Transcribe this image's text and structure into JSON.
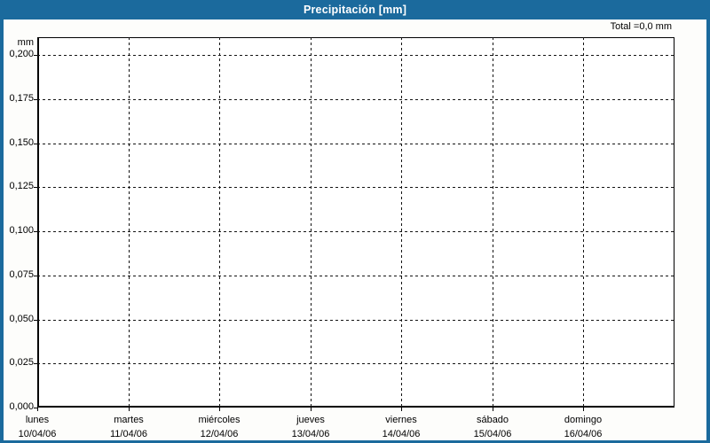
{
  "title_bar": {
    "title": "Precipitación [mm]"
  },
  "chart_data": {
    "type": "bar",
    "title": "Precipitación [mm]",
    "unit_label": "mm",
    "ylabel": "mm",
    "xlabel": "",
    "total_label": "Total =0,0 mm",
    "total_mm": 0.0,
    "categories": [
      "lunes",
      "martes",
      "miércoles",
      "jueves",
      "viernes",
      "sábado",
      "domingo"
    ],
    "dates": [
      "10/04/06",
      "11/04/06",
      "12/04/06",
      "13/04/06",
      "14/04/06",
      "15/04/06",
      "16/04/06"
    ],
    "values": [
      0,
      0,
      0,
      0,
      0,
      0,
      0
    ],
    "y_ticks": [
      {
        "label": "0,200",
        "value": 0.2
      },
      {
        "label": "0,175",
        "value": 0.175
      },
      {
        "label": "0,150",
        "value": 0.15
      },
      {
        "label": "0,125",
        "value": 0.125
      },
      {
        "label": "0,100",
        "value": 0.1
      },
      {
        "label": "0,075",
        "value": 0.075
      },
      {
        "label": "0,050",
        "value": 0.05
      },
      {
        "label": "0,025",
        "value": 0.025
      },
      {
        "label": "0,000",
        "value": 0.0
      }
    ],
    "ylim": [
      0,
      0.21
    ],
    "grid": "dashed",
    "legend_position": "none",
    "colors": {
      "frame": "#1b6a9d",
      "title_text": "#ffffff",
      "grid": "#141414",
      "axis": "#000000",
      "label_text": "#000000",
      "plot_background": "#ffffff",
      "canvas_background": "#fdfdfb"
    }
  }
}
